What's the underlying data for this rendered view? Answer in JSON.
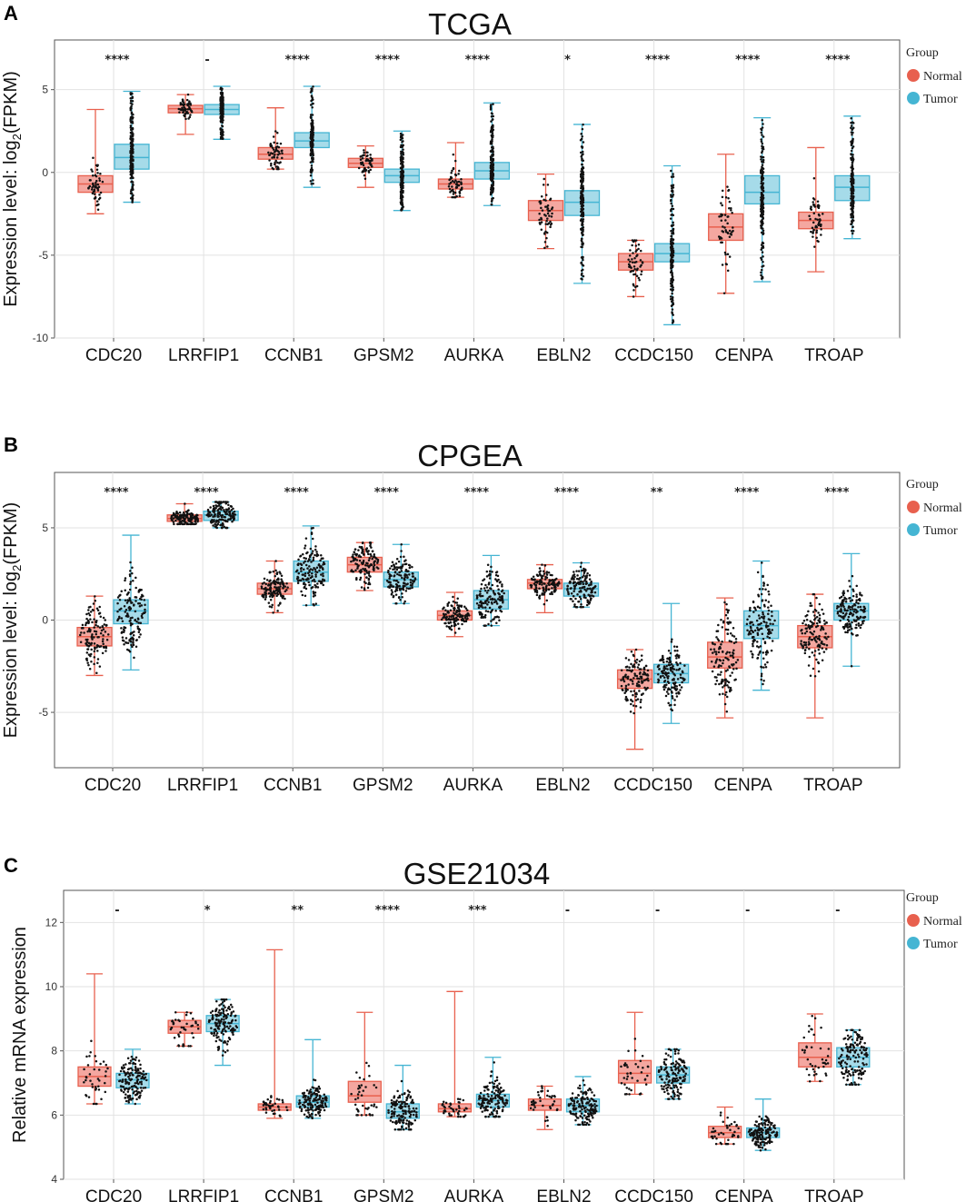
{
  "colors": {
    "normal": "#e8604e",
    "tumor": "#45b5d3",
    "normal_fill": "#f4a7a0",
    "tumor_fill": "#a6dbe9",
    "grid": "#e2e2e2",
    "dot": "#111111"
  },
  "chart_data": [
    {
      "panel": "A",
      "type": "box",
      "title": "TCGA",
      "ylabel": "Expression level: log2(FPKM)",
      "ylabel_pre": "Expression level: log",
      "ylabel_sub": "2",
      "ylabel_post": "(FPKM)",
      "ylim": [
        -10,
        8
      ],
      "yticks": [
        -10,
        -5,
        0,
        5
      ],
      "categories": [
        "CDC20",
        "LRRFIP1",
        "CCNB1",
        "GPSM2",
        "AURKA",
        "EBLN2",
        "CCDC150",
        "CENPA",
        "TROAP"
      ],
      "significance": [
        "****",
        "-",
        "****",
        "****",
        "****",
        "*",
        "****",
        "****",
        "****"
      ],
      "legend": {
        "title": "Group",
        "items": [
          "Normal",
          "Tumor"
        ],
        "position": "right"
      },
      "series": [
        {
          "name": "Normal",
          "boxes": [
            {
              "min": -2.5,
              "q1": -1.2,
              "median": -0.7,
              "q3": -0.2,
              "max": 3.8
            },
            {
              "min": 2.3,
              "q1": 3.6,
              "median": 3.85,
              "q3": 4.05,
              "max": 4.7
            },
            {
              "min": 0.2,
              "q1": 0.8,
              "median": 1.1,
              "q3": 1.5,
              "max": 3.9
            },
            {
              "min": -0.9,
              "q1": 0.3,
              "median": 0.55,
              "q3": 0.85,
              "max": 1.6
            },
            {
              "min": -1.5,
              "q1": -1.0,
              "median": -0.7,
              "q3": -0.4,
              "max": 1.8
            },
            {
              "min": -4.6,
              "q1": -2.9,
              "median": -2.3,
              "q3": -1.7,
              "max": -0.1
            },
            {
              "min": -7.5,
              "q1": -5.9,
              "median": -5.4,
              "q3": -4.9,
              "max": -4.1
            },
            {
              "min": -7.3,
              "q1": -4.1,
              "median": -3.3,
              "q3": -2.5,
              "max": 1.1
            },
            {
              "min": -6.0,
              "q1": -3.4,
              "median": -2.9,
              "q3": -2.4,
              "max": 1.5
            }
          ]
        },
        {
          "name": "Tumor",
          "boxes": [
            {
              "min": -1.8,
              "q1": 0.2,
              "median": 0.9,
              "q3": 1.7,
              "max": 4.9
            },
            {
              "min": 2.0,
              "q1": 3.5,
              "median": 3.8,
              "q3": 4.1,
              "max": 5.2
            },
            {
              "min": -0.9,
              "q1": 1.5,
              "median": 1.9,
              "q3": 2.4,
              "max": 5.2
            },
            {
              "min": -2.3,
              "q1": -0.6,
              "median": -0.2,
              "q3": 0.2,
              "max": 2.5
            },
            {
              "min": -2.0,
              "q1": -0.4,
              "median": 0.1,
              "q3": 0.6,
              "max": 4.2
            },
            {
              "min": -6.7,
              "q1": -2.6,
              "median": -1.8,
              "q3": -1.1,
              "max": 2.9
            },
            {
              "min": -9.2,
              "q1": -5.4,
              "median": -4.9,
              "q3": -4.3,
              "max": 0.4
            },
            {
              "min": -6.6,
              "q1": -1.9,
              "median": -1.2,
              "q3": -0.2,
              "max": 3.3
            },
            {
              "min": -4.0,
              "q1": -1.7,
              "median": -0.9,
              "q3": -0.2,
              "max": 3.4
            }
          ]
        }
      ]
    },
    {
      "panel": "B",
      "type": "box",
      "title": "CPGEA",
      "ylabel": "Expression level: log2(FPKM)",
      "ylabel_pre": "Expression level: log",
      "ylabel_sub": "2",
      "ylabel_post": "(FPKM)",
      "ylim": [
        -8,
        8
      ],
      "yticks": [
        -5,
        0,
        5
      ],
      "categories": [
        "CDC20",
        "LRRFIP1",
        "CCNB1",
        "GPSM2",
        "AURKA",
        "EBLN2",
        "CCDC150",
        "CENPA",
        "TROAP"
      ],
      "significance": [
        "****",
        "****",
        "****",
        "****",
        "****",
        "****",
        "**",
        "****",
        "****"
      ],
      "legend": {
        "title": "Group",
        "items": [
          "Normal",
          "Tumor"
        ],
        "position": "right"
      },
      "series": [
        {
          "name": "Normal",
          "boxes": [
            {
              "min": -3.0,
              "q1": -1.4,
              "median": -0.9,
              "q3": -0.4,
              "max": 1.3
            },
            {
              "min": 5.2,
              "q1": 5.35,
              "median": 5.5,
              "q3": 5.7,
              "max": 6.3
            },
            {
              "min": 0.4,
              "q1": 1.4,
              "median": 1.7,
              "q3": 2.0,
              "max": 3.2
            },
            {
              "min": 1.6,
              "q1": 2.6,
              "median": 3.0,
              "q3": 3.4,
              "max": 4.2
            },
            {
              "min": -0.9,
              "q1": 0.0,
              "median": 0.25,
              "q3": 0.5,
              "max": 1.5
            },
            {
              "min": 0.4,
              "q1": 1.7,
              "median": 2.0,
              "q3": 2.2,
              "max": 3.0
            },
            {
              "min": -7.0,
              "q1": -3.7,
              "median": -3.2,
              "q3": -2.7,
              "max": -1.6
            },
            {
              "min": -5.3,
              "q1": -2.6,
              "median": -2.0,
              "q3": -1.2,
              "max": 1.2
            },
            {
              "min": -5.3,
              "q1": -1.5,
              "median": -0.9,
              "q3": -0.3,
              "max": 1.4
            }
          ]
        },
        {
          "name": "Tumor",
          "boxes": [
            {
              "min": -2.7,
              "q1": -0.2,
              "median": 0.5,
              "q3": 1.1,
              "max": 4.6
            },
            {
              "min": 5.0,
              "q1": 5.4,
              "median": 5.7,
              "q3": 5.9,
              "max": 6.4
            },
            {
              "min": 0.8,
              "q1": 2.1,
              "median": 2.6,
              "q3": 3.2,
              "max": 5.1
            },
            {
              "min": 0.9,
              "q1": 1.8,
              "median": 2.2,
              "q3": 2.6,
              "max": 4.1
            },
            {
              "min": -0.3,
              "q1": 0.6,
              "median": 1.1,
              "q3": 1.6,
              "max": 3.5
            },
            {
              "min": 0.7,
              "q1": 1.3,
              "median": 1.7,
              "q3": 2.0,
              "max": 3.1
            },
            {
              "min": -5.6,
              "q1": -3.4,
              "median": -2.9,
              "q3": -2.4,
              "max": 0.9
            },
            {
              "min": -3.8,
              "q1": -1.0,
              "median": -0.3,
              "q3": 0.5,
              "max": 3.2
            },
            {
              "min": -2.5,
              "q1": 0.0,
              "median": 0.5,
              "q3": 0.9,
              "max": 3.6
            }
          ]
        }
      ]
    },
    {
      "panel": "C",
      "type": "box",
      "title": "GSE21034",
      "ylabel": "Relative mRNA expression",
      "ylim": [
        4,
        13
      ],
      "yticks": [
        4,
        6,
        8,
        10,
        12
      ],
      "categories": [
        "CDC20",
        "LRRFIP1",
        "CCNB1",
        "GPSM2",
        "AURKA",
        "EBLN2",
        "CCDC150",
        "CENPA",
        "TROAP"
      ],
      "significance": [
        "-",
        "*",
        "**",
        "****",
        "***",
        "-",
        "-",
        "-",
        "-"
      ],
      "legend": {
        "title": "Group",
        "items": [
          "Normal",
          "Tumor"
        ],
        "position": "right"
      },
      "series": [
        {
          "name": "Normal",
          "boxes": [
            {
              "min": 6.35,
              "q1": 6.9,
              "median": 7.2,
              "q3": 7.5,
              "max": 10.4
            },
            {
              "min": 8.15,
              "q1": 8.55,
              "median": 8.75,
              "q3": 8.95,
              "max": 9.2
            },
            {
              "min": 5.9,
              "q1": 6.15,
              "median": 6.25,
              "q3": 6.35,
              "max": 11.15
            },
            {
              "min": 6.0,
              "q1": 6.4,
              "median": 6.6,
              "q3": 7.05,
              "max": 9.2
            },
            {
              "min": 5.95,
              "q1": 6.1,
              "median": 6.2,
              "q3": 6.35,
              "max": 9.85
            },
            {
              "min": 5.55,
              "q1": 6.15,
              "median": 6.3,
              "q3": 6.5,
              "max": 6.9
            },
            {
              "min": 6.65,
              "q1": 7.0,
              "median": 7.3,
              "q3": 7.7,
              "max": 9.2
            },
            {
              "min": 5.1,
              "q1": 5.3,
              "median": 5.45,
              "q3": 5.65,
              "max": 6.25
            },
            {
              "min": 7.05,
              "q1": 7.5,
              "median": 7.8,
              "q3": 8.25,
              "max": 9.15
            }
          ]
        },
        {
          "name": "Tumor",
          "boxes": [
            {
              "min": 6.35,
              "q1": 6.85,
              "median": 7.1,
              "q3": 7.3,
              "max": 8.05
            },
            {
              "min": 7.55,
              "q1": 8.6,
              "median": 8.85,
              "q3": 9.1,
              "max": 9.6
            },
            {
              "min": 5.9,
              "q1": 6.25,
              "median": 6.4,
              "q3": 6.6,
              "max": 8.35
            },
            {
              "min": 5.55,
              "q1": 5.9,
              "median": 6.1,
              "q3": 6.35,
              "max": 7.55
            },
            {
              "min": 5.95,
              "q1": 6.25,
              "median": 6.45,
              "q3": 6.65,
              "max": 7.8
            },
            {
              "min": 5.7,
              "q1": 6.1,
              "median": 6.3,
              "q3": 6.5,
              "max": 7.2
            },
            {
              "min": 6.5,
              "q1": 7.0,
              "median": 7.25,
              "q3": 7.5,
              "max": 8.05
            },
            {
              "min": 4.9,
              "q1": 5.3,
              "median": 5.45,
              "q3": 5.6,
              "max": 6.5
            },
            {
              "min": 6.95,
              "q1": 7.5,
              "median": 7.8,
              "q3": 8.1,
              "max": 8.65
            }
          ]
        }
      ]
    }
  ]
}
